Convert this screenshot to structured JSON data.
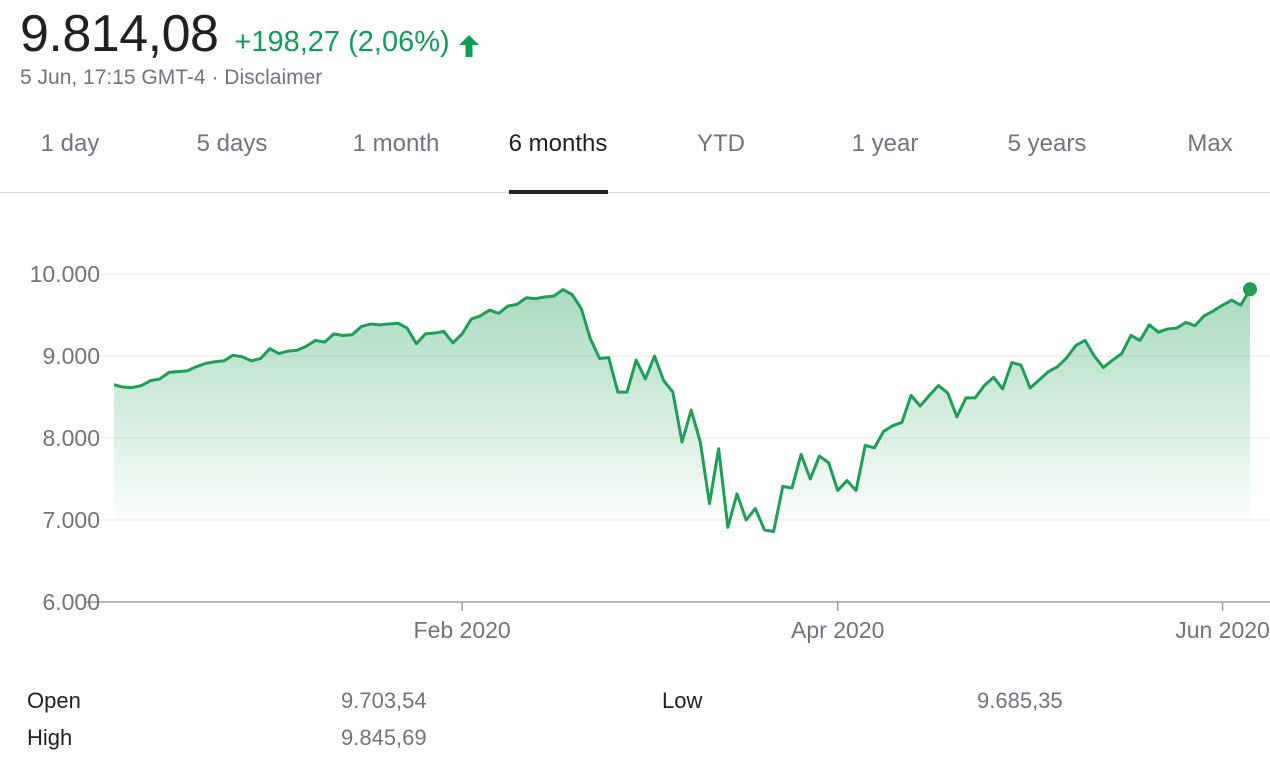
{
  "quote": {
    "price": "9.814,08",
    "change": "+198,27 (2,06%)",
    "timestamp": "5 Jun, 17:15 GMT-4",
    "separator": "·",
    "disclaimer": "Disclaimer"
  },
  "colors": {
    "positive": "#0f9d58",
    "line": "#1e9e57",
    "text_muted": "#70757a",
    "gridline": "#e8e8e8"
  },
  "tabs": [
    {
      "label": "1 day",
      "active": false
    },
    {
      "label": "5 days",
      "active": false
    },
    {
      "label": "1 month",
      "active": false
    },
    {
      "label": "6 months",
      "active": true
    },
    {
      "label": "YTD",
      "active": false
    },
    {
      "label": "1 year",
      "active": false
    },
    {
      "label": "5 years",
      "active": false
    },
    {
      "label": "Max",
      "active": false
    }
  ],
  "stats": {
    "open_label": "Open",
    "open_value": "9.703,54",
    "high_label": "High",
    "high_value": "9.845,69",
    "low_label": "Low",
    "low_value": "9.685,35"
  },
  "chart_data": {
    "type": "area",
    "ylim": [
      6000,
      10000
    ],
    "yticks": [
      {
        "value": 10000,
        "label": "10.000"
      },
      {
        "value": 9000,
        "label": "9.000"
      },
      {
        "value": 8000,
        "label": "8.000"
      },
      {
        "value": 7000,
        "label": "7.000"
      },
      {
        "value": 6000,
        "label": "6.000"
      }
    ],
    "xticks": [
      {
        "index": 38,
        "label": "Feb 2020"
      },
      {
        "index": 79,
        "label": "Apr 2020"
      },
      {
        "index": 121,
        "label": "Jun 2020"
      }
    ],
    "grid": true,
    "series": [
      {
        "values": [
          8650,
          8620,
          8615,
          8640,
          8700,
          8720,
          8800,
          8810,
          8820,
          8870,
          8910,
          8930,
          8940,
          9010,
          8990,
          8940,
          8970,
          9090,
          9030,
          9060,
          9070,
          9120,
          9190,
          9170,
          9270,
          9250,
          9260,
          9360,
          9390,
          9380,
          9390,
          9400,
          9340,
          9150,
          9270,
          9280,
          9300,
          9160,
          9270,
          9450,
          9490,
          9560,
          9520,
          9610,
          9630,
          9710,
          9700,
          9720,
          9730,
          9810,
          9750,
          9580,
          9210,
          8970,
          8980,
          8560,
          8560,
          8950,
          8720,
          9000,
          8700,
          8560,
          7950,
          8340,
          7950,
          7200,
          7870,
          6910,
          7320,
          7000,
          7140,
          6880,
          6860,
          7410,
          7390,
          7800,
          7500,
          7780,
          7700,
          7360,
          7480,
          7360,
          7910,
          7880,
          8080,
          8150,
          8190,
          8520,
          8390,
          8520,
          8640,
          8550,
          8260,
          8490,
          8490,
          8640,
          8740,
          8600,
          8920,
          8890,
          8610,
          8710,
          8810,
          8870,
          8980,
          9130,
          9190,
          9000,
          8860,
          8950,
          9030,
          9250,
          9190,
          9380,
          9290,
          9330,
          9340,
          9410,
          9370,
          9490,
          9550,
          9620,
          9680,
          9620,
          9814
        ]
      }
    ]
  }
}
